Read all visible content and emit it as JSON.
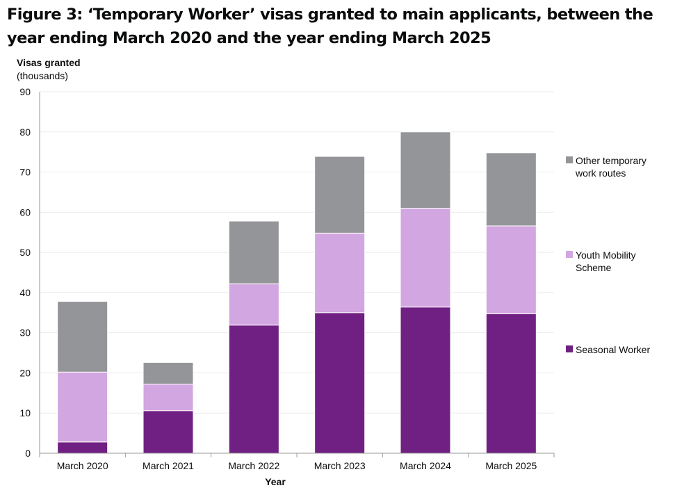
{
  "title": "Figure 3: ‘Temporary Worker’ visas granted to main applicants, between the year ending March 2020 and the year ending March 2025",
  "chart_data": {
    "type": "bar",
    "stacked": true,
    "categories": [
      "March 2020",
      "March 2021",
      "March 2022",
      "March 2023",
      "March 2024",
      "March 2025"
    ],
    "series": [
      {
        "name": "Seasonal Worker",
        "color": "#702082",
        "values": [
          2.8,
          10.6,
          31.9,
          35.0,
          36.4,
          34.7
        ]
      },
      {
        "name": "Youth Mobility Scheme",
        "color": "#d2a6e0",
        "values": [
          17.4,
          6.6,
          10.3,
          19.8,
          24.6,
          21.9
        ]
      },
      {
        "name": "Other temporary work routes",
        "color": "#939598",
        "values": [
          17.6,
          5.4,
          15.6,
          19.1,
          19.0,
          18.2
        ]
      }
    ],
    "ylabel": "Visas granted",
    "ylabel_unit": "(thousands)",
    "xlabel": "Year",
    "ylim": [
      0,
      90
    ],
    "yticks": [
      0,
      10,
      20,
      30,
      40,
      50,
      60,
      70,
      80,
      90
    ],
    "legend": {
      "placement": "right",
      "entries": [
        {
          "series": "Other temporary work routes",
          "lines": [
            "Other temporary",
            "work routes"
          ]
        },
        {
          "series": "Youth Mobility Scheme",
          "lines": [
            "Youth Mobility",
            "Scheme"
          ]
        },
        {
          "series": "Seasonal Worker",
          "lines": [
            "Seasonal Worker"
          ]
        }
      ]
    },
    "grid": true
  }
}
